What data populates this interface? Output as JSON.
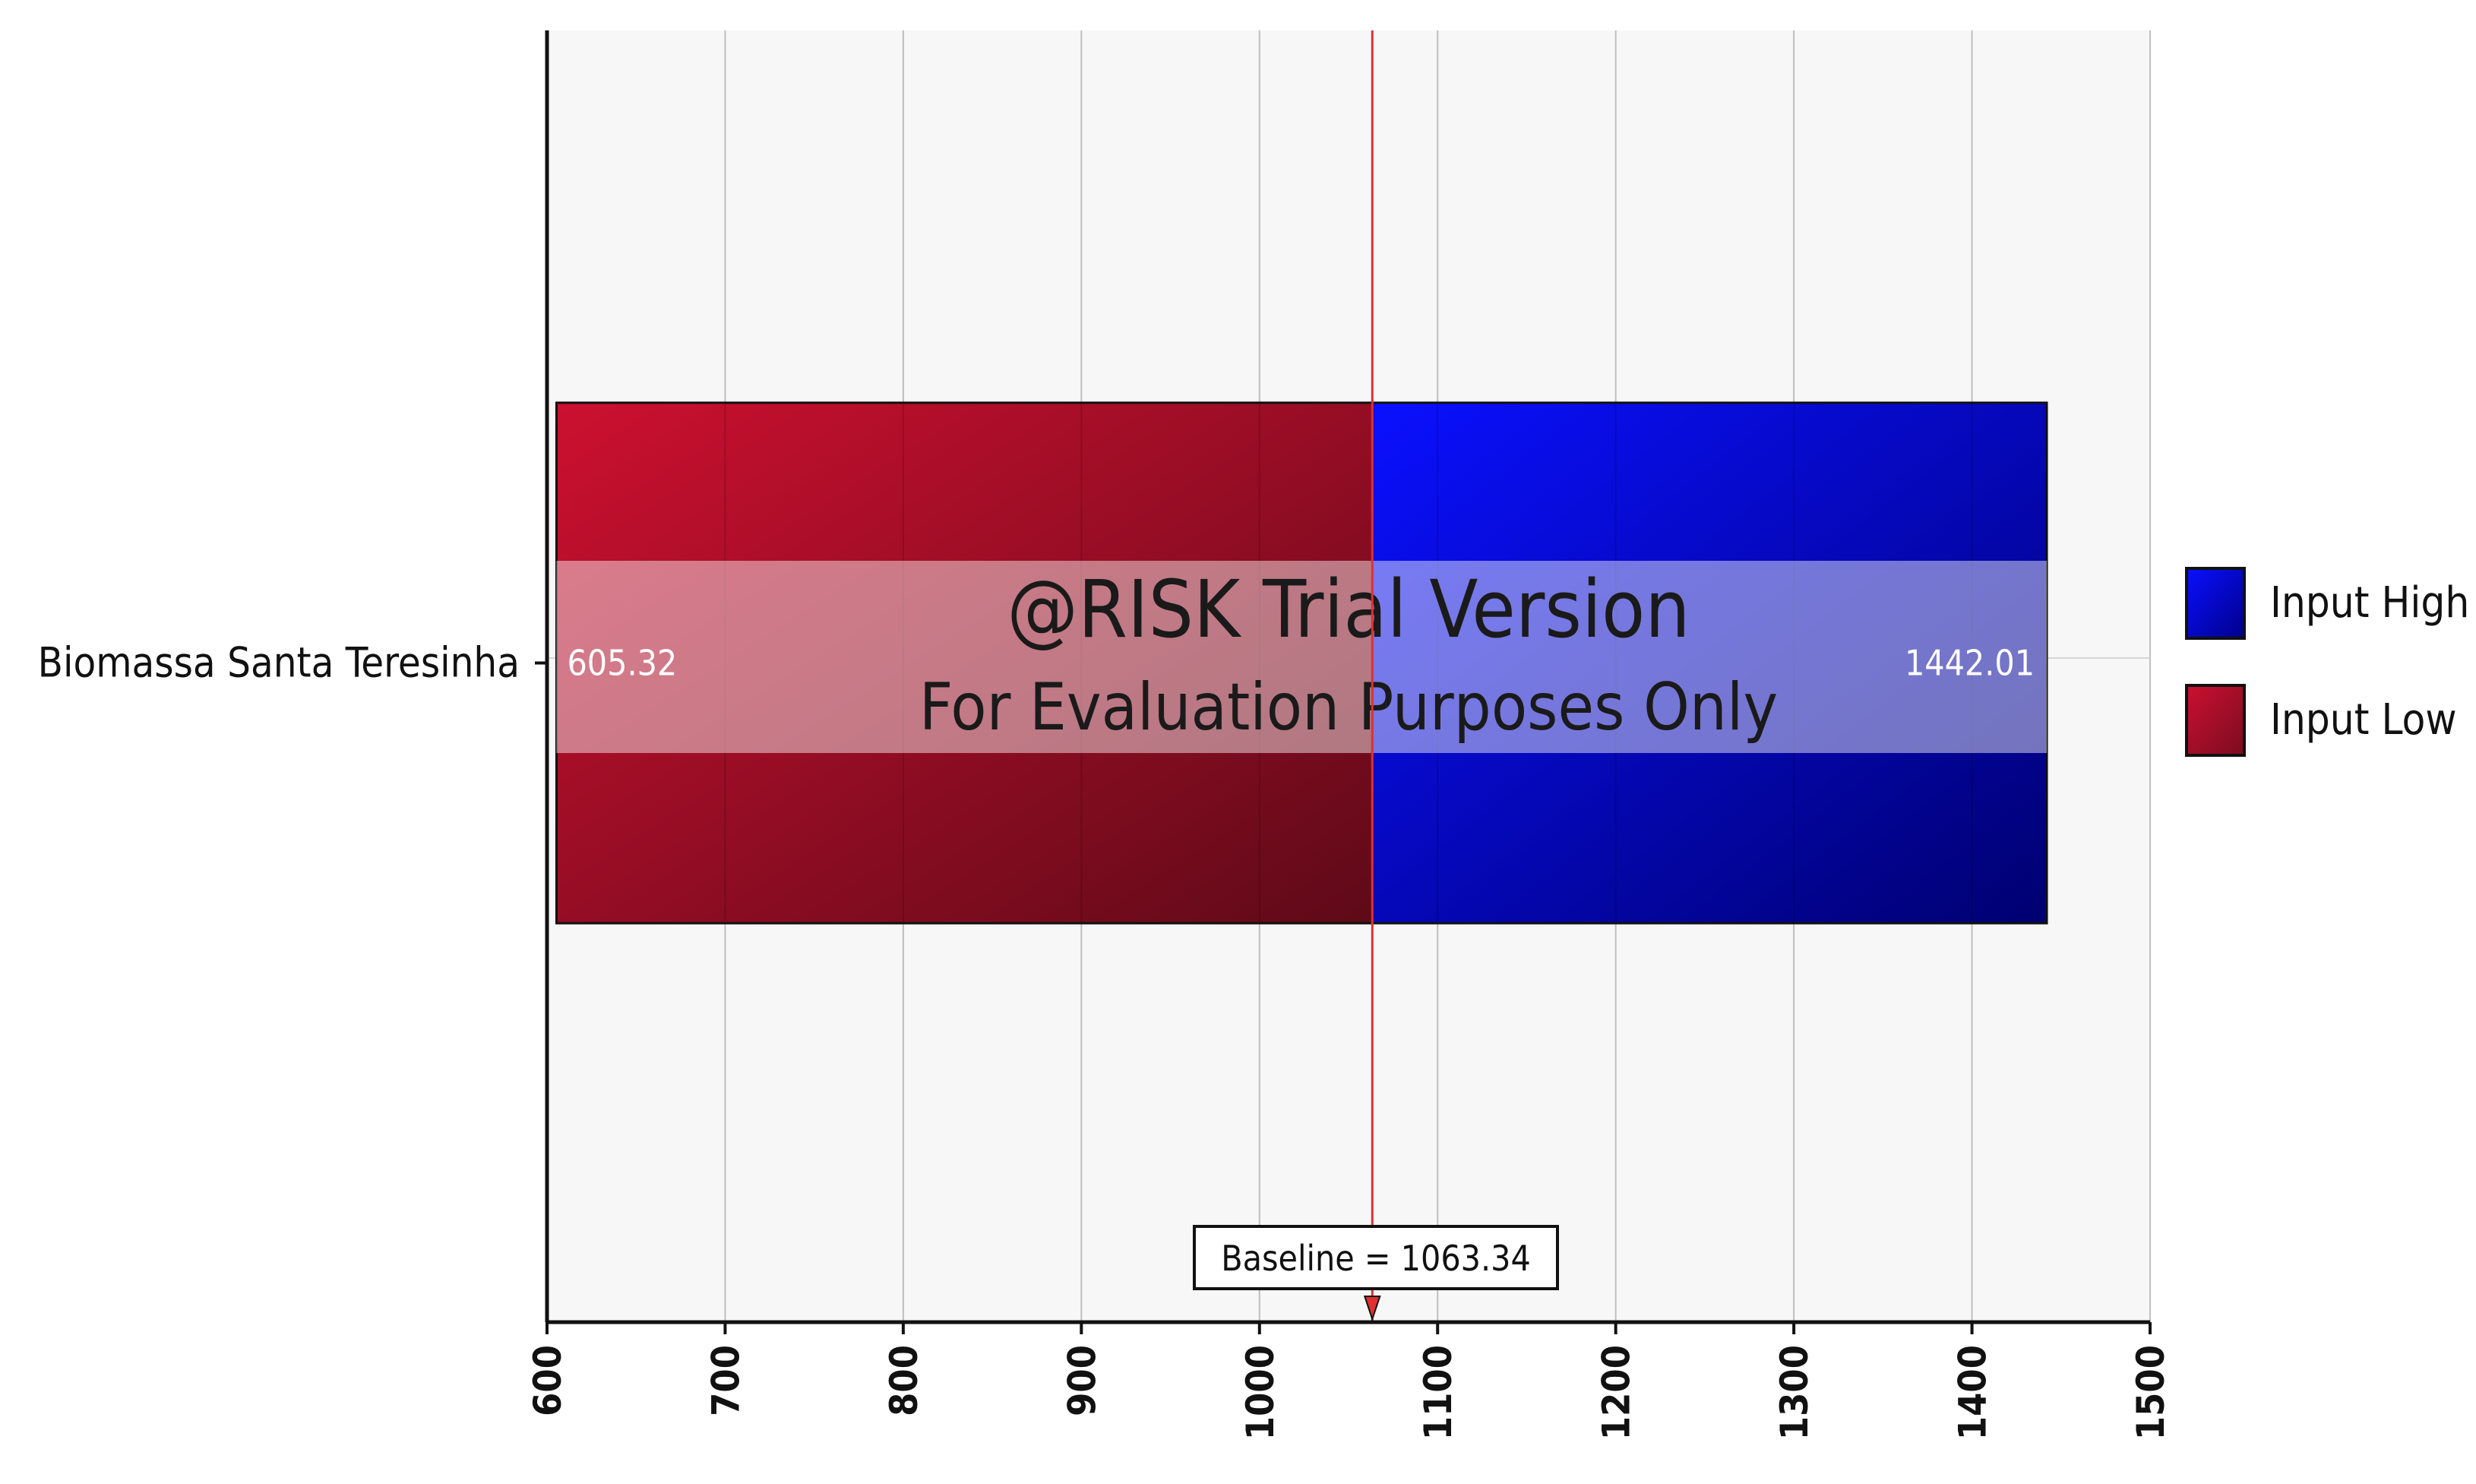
{
  "chart_data": {
    "type": "bar",
    "orientation": "horizontal",
    "subtype": "tornado",
    "xlim": [
      600,
      1500
    ],
    "xticks": [
      600,
      700,
      800,
      900,
      1000,
      1100,
      1200,
      1300,
      1400,
      1500
    ],
    "grid": true,
    "categories": [
      "Biomassa Santa Teresinha"
    ],
    "baseline": 1063.34,
    "baseline_label": "Baseline = 1063.34",
    "series": [
      {
        "name": "Input Low",
        "color": "#b0102e",
        "low": [
          605.32
        ],
        "high": [
          1063.34
        ],
        "value_labels": [
          "605.32"
        ]
      },
      {
        "name": "Input High",
        "color": "#0000cc",
        "low": [
          1063.34
        ],
        "high": [
          1442.01
        ],
        "value_labels": [
          "1442.01"
        ]
      }
    ],
    "legend_position": "right",
    "watermark": [
      "@RISK Trial Version",
      "For Evaluation Purposes Only"
    ],
    "colors": {
      "baseline": "#e03030",
      "grid": "#bfbfbf",
      "plot_bg": "#f7f7f7"
    }
  }
}
